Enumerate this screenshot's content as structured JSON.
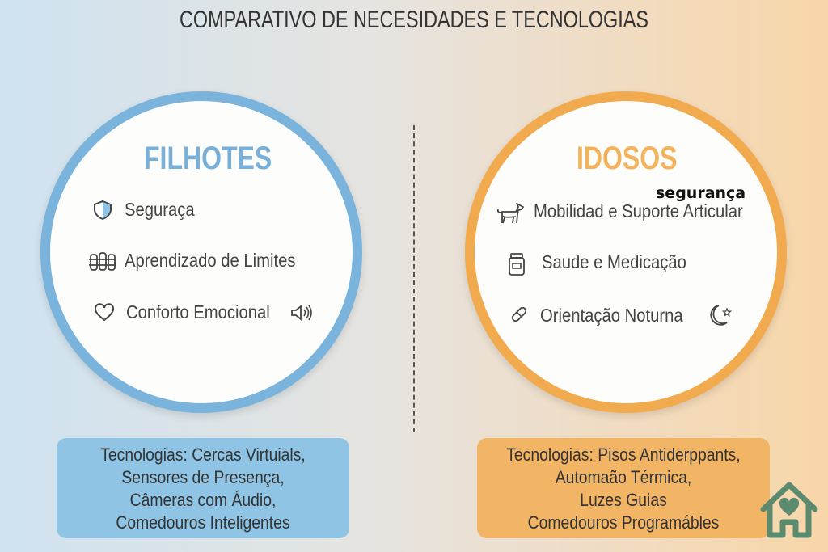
{
  "header": {
    "title": "COMPARATIVO DE NECESIDADES E TECNOLOGIAS"
  },
  "left": {
    "title": "FILHOTES",
    "color": "#7ab4dc",
    "items": [
      {
        "label": "Seguraça",
        "icon": "shield-icon"
      },
      {
        "label": "Aprendizado de Limites",
        "icon": "fence-icon"
      },
      {
        "label": "Conforto Emocional",
        "icon": "heart-icon",
        "extra_icon": "speaker-icon"
      }
    ],
    "tech_lines": [
      "Tecnologias: Cercas Virtuials,",
      "Sensores de Presença,",
      "Câmeras com Áudio,",
      "Comedouros Inteligentes"
    ]
  },
  "right": {
    "title": "IDOSOS",
    "color": "#f1aa4d",
    "overlay_text": "segurança",
    "items": [
      {
        "label": "Mobilidad e Suporte Articular",
        "icon": "dog-icon"
      },
      {
        "label": "Saude e Medicação",
        "icon": "medicine-jar-icon"
      },
      {
        "label": "Orientação Noturna",
        "icon": "pill-icon",
        "extra_icon": "moon-star-icon"
      }
    ],
    "tech_lines": [
      "Tecnologias: Pisos Antiderppants,",
      "Automaão Térmica,",
      "Luzes Guias",
      "Comedouros Programábles"
    ]
  },
  "logo": {
    "icon": "house-heart-icon",
    "color": "#5b8a6f"
  }
}
